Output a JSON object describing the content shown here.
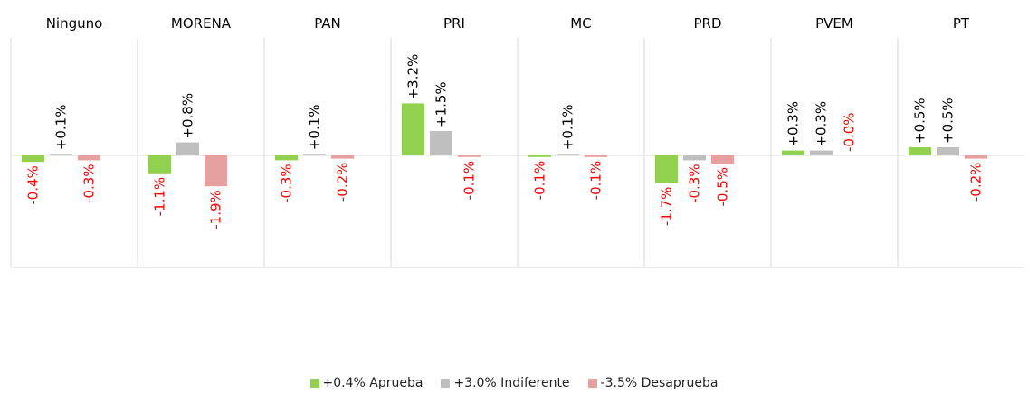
{
  "chart_data": {
    "type": "bar",
    "categories": [
      "Ninguno",
      "MORENA",
      "PAN",
      "PRI",
      "MC",
      "PRD",
      "PVEM",
      "PT"
    ],
    "series": [
      {
        "name": "+0.4% Aprueba",
        "color": "#92d050",
        "values": [
          -0.4,
          -1.1,
          -0.3,
          3.2,
          -0.1,
          -1.7,
          0.3,
          0.5
        ],
        "labels": [
          "-0.4%",
          "-1.1%",
          "-0.3%",
          "+3.2%",
          "-0.1%",
          "-1.7%",
          "+0.3%",
          "+0.5%"
        ]
      },
      {
        "name": "+3.0% Indiferente",
        "color": "#bfbfbf",
        "values": [
          0.1,
          0.8,
          0.1,
          1.5,
          0.1,
          -0.3,
          0.3,
          0.5
        ],
        "labels": [
          "+0.1%",
          "+0.8%",
          "+0.1%",
          "+1.5%",
          "+0.1%",
          "-0.3%",
          "+0.3%",
          "+0.5%"
        ]
      },
      {
        "name": "-3.5% Desaprueba",
        "color": "#e6a0a0",
        "values": [
          -0.3,
          -1.9,
          -0.2,
          -0.1,
          -0.1,
          -0.5,
          0.0,
          -0.2
        ],
        "labels": [
          "-0.3%",
          "-1.9%",
          "-0.2%",
          "-0.1%",
          "-0.1%",
          "-0.5%",
          "-0.0%",
          "-0.2%"
        ]
      }
    ],
    "positive_label_color": "#000000",
    "negative_label_color": "#ff0000",
    "legend_position": "bottom",
    "grid": false
  }
}
